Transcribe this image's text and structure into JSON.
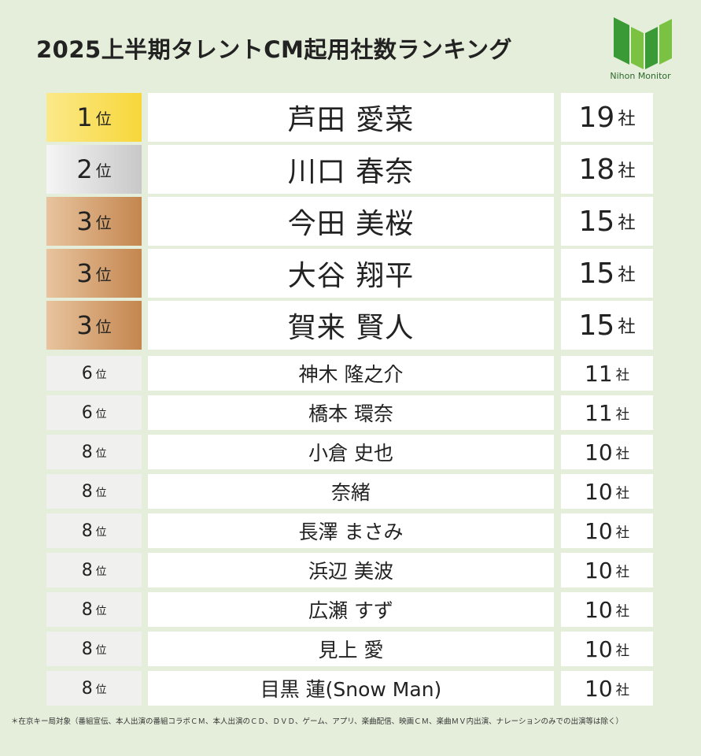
{
  "header": {
    "title": "2025上半期タレントCM起用社数ランキング",
    "logo": "Nihon Monitor"
  },
  "table": {
    "rows": [
      {
        "rank": 1,
        "rank_unit": "位",
        "name": "芦田 愛菜",
        "count": 19,
        "count_unit": "社"
      },
      {
        "rank": 2,
        "rank_unit": "位",
        "name": "川口 春奈",
        "count": 18,
        "count_unit": "社"
      },
      {
        "rank": 3,
        "rank_unit": "位",
        "name": "今田 美桜",
        "count": 15,
        "count_unit": "社"
      },
      {
        "rank": 3,
        "rank_unit": "位",
        "name": "大谷 翔平",
        "count": 15,
        "count_unit": "社"
      },
      {
        "rank": 3,
        "rank_unit": "位",
        "name": "賀来 賢人",
        "count": 15,
        "count_unit": "社"
      },
      {
        "rank": 6,
        "rank_unit": "位",
        "name": "神木 隆之介",
        "count": 11,
        "count_unit": "社"
      },
      {
        "rank": 6,
        "rank_unit": "位",
        "name": "橋本 環奈",
        "count": 11,
        "count_unit": "社"
      },
      {
        "rank": 8,
        "rank_unit": "位",
        "name": "小倉 史也",
        "count": 10,
        "count_unit": "社"
      },
      {
        "rank": 8,
        "rank_unit": "位",
        "name": "奈緒",
        "count": 10,
        "count_unit": "社"
      },
      {
        "rank": 8,
        "rank_unit": "位",
        "name": "長澤 まさみ",
        "count": 10,
        "count_unit": "社"
      },
      {
        "rank": 8,
        "rank_unit": "位",
        "name": "浜辺 美波",
        "count": 10,
        "count_unit": "社"
      },
      {
        "rank": 8,
        "rank_unit": "位",
        "name": "広瀬 すず",
        "count": 10,
        "count_unit": "社"
      },
      {
        "rank": 8,
        "rank_unit": "位",
        "name": "見上 愛",
        "count": 10,
        "count_unit": "社"
      },
      {
        "rank": 8,
        "rank_unit": "位",
        "name": "目黒 蓮(Snow Man)",
        "count": 10,
        "count_unit": "社"
      }
    ]
  },
  "footnote": "＊在京キー局対象（番組宣伝、本人出演の番組コラボＣＭ、本人出演のＣＤ、ＤＶＤ、ゲーム、アプリ、楽曲配信、映画ＣＭ、楽曲ＭＶ内出演、ナレーションのみでの出演等は除く）"
}
